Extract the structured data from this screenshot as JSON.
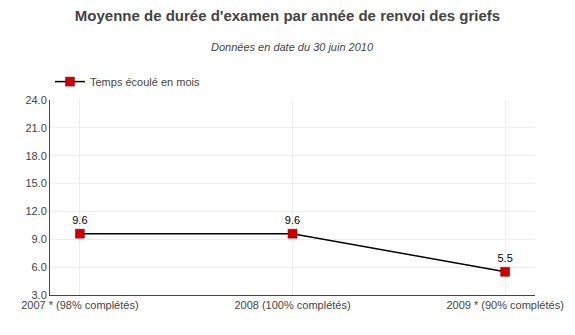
{
  "chart_data": {
    "type": "line",
    "title": "Moyenne de durée d'examen par année de renvoi des griefs",
    "subtitle": "Données en date du 30 juin 2010",
    "categories": [
      "2007 * (98% complétés)",
      "2008 (100% complétés)",
      "2009 * (90% complétés)"
    ],
    "series": [
      {
        "name": "Temps écoulé en mois",
        "color": "#000000",
        "colors": [
          "#cc0000",
          "#cc0000",
          "#cc0000"
        ],
        "marker": "square",
        "line_style": "solid",
        "values": [
          9.6,
          9.6,
          5.5
        ]
      }
    ],
    "ylim": [
      3.0,
      24.0
    ],
    "yticks": [
      {
        "value": 3.0,
        "label": "3.0"
      },
      {
        "value": 6.0,
        "label": "6.0"
      },
      {
        "value": 9.0,
        "label": "9.0"
      },
      {
        "value": 12.0,
        "label": "12.0"
      },
      {
        "value": 15.0,
        "label": "15.0"
      },
      {
        "value": 18.0,
        "label": "18.0"
      },
      {
        "value": 21.0,
        "label": "21.0"
      },
      {
        "value": 24.0,
        "label": "24.0"
      }
    ],
    "grid": true,
    "legend": "upper left",
    "data_labels": true
  }
}
